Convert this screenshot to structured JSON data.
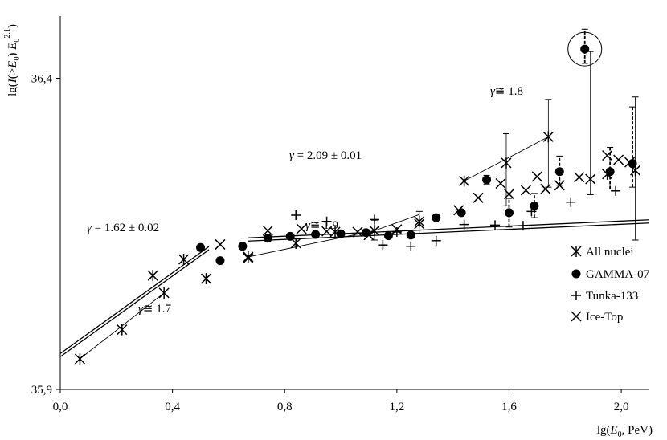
{
  "chart_data": {
    "type": "scatter",
    "xlabel_html": "lg(<tspan font-style='italic'>E</tspan><tspan font-size='10' dy='4'>0</tspan><tspan dy='-4'>, PeV)</tspan>",
    "xlabel": "lg(E0, PeV)",
    "ylabel": "lg(I(>E0) E0^2.1)",
    "xlim": [
      0.0,
      2.1
    ],
    "ylim": [
      35.9,
      36.5
    ],
    "x_ticks": [
      "0,0",
      "0,4",
      "0,8",
      "1,2",
      "1,6",
      "2,0"
    ],
    "y_ticks": [
      "35,9",
      "36,4"
    ],
    "grid": false,
    "legend_position": "right",
    "series": [
      {
        "name": "All nuclei",
        "marker": "asterisk",
        "points": [
          [
            0.07,
            35.949
          ],
          [
            0.22,
            35.996
          ],
          [
            0.33,
            36.083
          ],
          [
            0.37,
            36.055
          ],
          [
            0.44,
            36.109
          ],
          [
            0.52,
            36.078
          ],
          [
            0.67,
            36.113
          ],
          [
            0.84,
            36.135
          ],
          [
            0.98,
            36.153
          ],
          [
            1.12,
            36.155
          ],
          [
            1.28,
            36.17
          ],
          [
            1.44,
            36.235
          ],
          [
            1.59,
            36.264
          ],
          [
            1.74,
            36.306
          ],
          [
            1.95,
            36.246
          ],
          [
            2.05,
            36.252
          ]
        ]
      },
      {
        "name": "GAMMA-07",
        "marker": "filled-circle",
        "points": [
          [
            0.5,
            36.128
          ],
          [
            0.57,
            36.107
          ],
          [
            0.65,
            36.13
          ],
          [
            0.74,
            36.143
          ],
          [
            0.82,
            36.146
          ],
          [
            0.91,
            36.149
          ],
          [
            1.0,
            36.15
          ],
          [
            1.09,
            36.152
          ],
          [
            1.17,
            36.147
          ],
          [
            1.25,
            36.148
          ],
          [
            1.34,
            36.176
          ],
          [
            1.43,
            36.184
          ],
          [
            1.52,
            36.237
          ],
          [
            1.6,
            36.184
          ],
          [
            1.69,
            36.195
          ],
          [
            1.78,
            36.25
          ],
          [
            1.87,
            36.447
          ],
          [
            1.96,
            36.25
          ],
          [
            2.04,
            36.263
          ]
        ]
      },
      {
        "name": "Tunka-133",
        "marker": "plus",
        "points": [
          [
            0.84,
            36.18
          ],
          [
            0.95,
            36.17
          ],
          [
            1.12,
            36.173
          ],
          [
            1.15,
            36.132
          ],
          [
            1.2,
            36.153
          ],
          [
            1.25,
            36.13
          ],
          [
            1.34,
            36.139
          ],
          [
            1.44,
            36.165
          ],
          [
            1.55,
            36.164
          ],
          [
            1.65,
            36.163
          ],
          [
            1.68,
            36.186
          ],
          [
            1.82,
            36.201
          ],
          [
            1.98,
            36.219
          ]
        ]
      },
      {
        "name": "Ice-Top",
        "marker": "x",
        "points": [
          [
            0.57,
            36.133
          ],
          [
            0.67,
            36.111
          ],
          [
            0.74,
            36.155
          ],
          [
            0.86,
            36.158
          ],
          [
            0.95,
            36.154
          ],
          [
            1.06,
            36.153
          ],
          [
            1.1,
            36.148
          ],
          [
            1.2,
            36.157
          ],
          [
            1.28,
            36.166
          ],
          [
            1.42,
            36.188
          ],
          [
            1.49,
            36.208
          ],
          [
            1.57,
            36.231
          ],
          [
            1.6,
            36.214
          ],
          [
            1.66,
            36.22
          ],
          [
            1.7,
            36.242
          ],
          [
            1.73,
            36.222
          ],
          [
            1.78,
            36.228
          ],
          [
            1.85,
            36.241
          ],
          [
            1.89,
            36.238
          ],
          [
            1.95,
            36.276
          ],
          [
            1.99,
            36.269
          ],
          [
            2.03,
            36.265
          ]
        ]
      }
    ],
    "annotations": [
      {
        "text": "γ = 1.62 ± 0.02"
      },
      {
        "text": "γ ≅ 1.7"
      },
      {
        "text": "γ = 2.09 ± 0.01"
      },
      {
        "text": "γ ≅ 1.9"
      },
      {
        "text": "γ ≅ 1.8"
      }
    ]
  },
  "annotation_html": [
    "<tspan font-style='italic'>γ</tspan> = 1.62 ± 0.02",
    "<tspan font-style='italic'>γ</tspan>≅ 1.7",
    "<tspan font-style='italic'>γ</tspan> = 2.09 ± 0.01",
    "<tspan font-style='italic'>γ</tspan>≅ 1.9",
    "<tspan font-style='italic'>γ</tspan>≅ 1.8"
  ],
  "ylabel_html": "lg(<tspan font-style='italic'>I</tspan>(&gt;<tspan font-style='italic'>E</tspan><tspan font-size='10' dy='4'>0</tspan><tspan dy='-4'>) </tspan><tspan font-style='italic'>E</tspan><tspan font-size='10' dy='4'>0</tspan><tspan font-size='10' dy='-12'>2.1</tspan><tspan dy='8'>)</tspan>"
}
